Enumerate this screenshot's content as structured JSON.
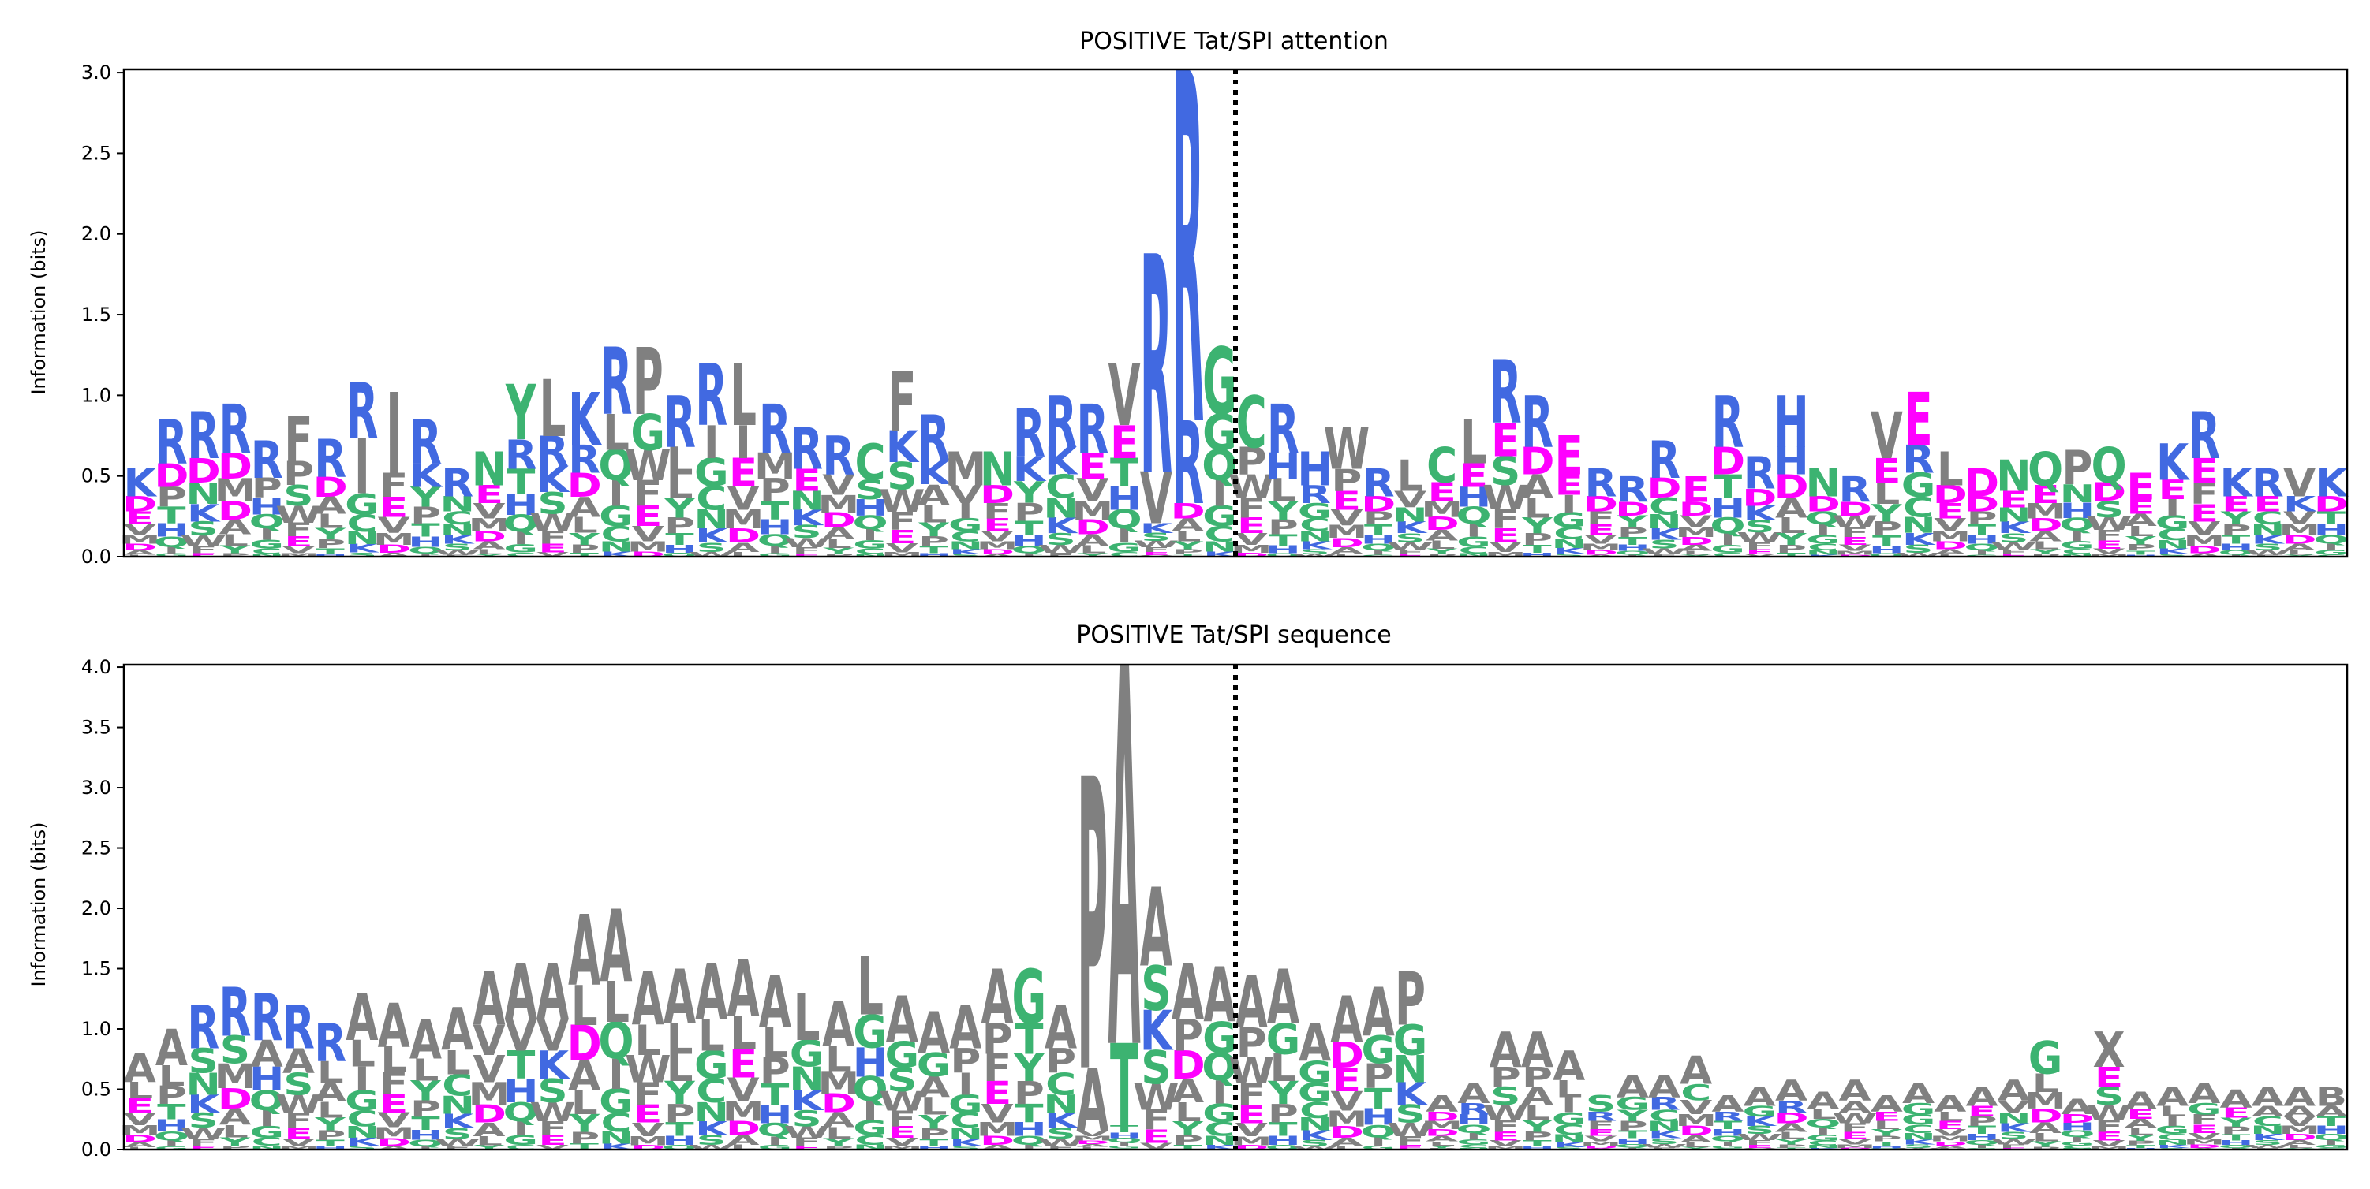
{
  "colors": {
    "R": "#4169e1",
    "K": "#4169e1",
    "H": "#4169e1",
    "D": "#ff00ff",
    "E": "#ff00ff",
    "G": "#3cb371",
    "S": "#3cb371",
    "T": "#3cb371",
    "N": "#3cb371",
    "Q": "#3cb371",
    "C": "#3cb371",
    "Y": "#3cb371",
    "A": "#808080",
    "V": "#808080",
    "L": "#808080",
    "I": "#808080",
    "P": "#808080",
    "F": "#808080",
    "M": "#808080",
    "W": "#808080",
    "X": "#808080"
  },
  "chart_data": [
    {
      "type": "logo",
      "title": "POSITIVE Tat/SPI attention",
      "ylabel": "Information (bits)",
      "ylim": [
        0,
        3.02
      ],
      "yticks": [
        "0.0",
        "0.5",
        "1.0",
        "1.5",
        "2.0",
        "2.5",
        "3.0"
      ],
      "positions": 70,
      "cleavage_site_after": 35,
      "top_letters": [
        "K",
        "R",
        "R",
        "R",
        "R",
        "F",
        "R",
        "R",
        "I",
        "R",
        "R",
        "N",
        "Y",
        "L",
        "K",
        "R",
        "P",
        "R",
        "R",
        "L",
        "R",
        "R",
        "R",
        "C",
        "F",
        "R",
        "M",
        "N",
        "R",
        "R",
        "R",
        "V",
        "R",
        "R",
        "G",
        "C",
        "R",
        "H",
        "W",
        "R",
        "L",
        "C",
        "L",
        "R",
        "R",
        "E",
        "R",
        "R",
        "R",
        "E",
        "R",
        "R",
        "H",
        "N",
        "R",
        "V",
        "E",
        "L",
        "D",
        "N",
        "Q",
        "P",
        "Q",
        "E",
        "K",
        "R",
        "K",
        "R",
        "V",
        "K"
      ],
      "column_heights": [
        0.55,
        0.85,
        0.9,
        0.95,
        0.72,
        0.87,
        0.73,
        1.08,
        1.02,
        0.85,
        0.55,
        0.65,
        1.07,
        1.1,
        1.02,
        1.3,
        1.3,
        1.0,
        1.2,
        1.2,
        0.95,
        0.8,
        0.75,
        0.7,
        1.15,
        0.88,
        0.65,
        0.65,
        0.92,
        1.0,
        0.95,
        1.2,
        1.88,
        3.02,
        1.3,
        1.0,
        0.95,
        0.65,
        0.8,
        0.55,
        0.6,
        0.68,
        0.85,
        1.22,
        1.0,
        0.75,
        0.55,
        0.5,
        0.72,
        0.5,
        1.0,
        0.62,
        1.0,
        0.55,
        0.5,
        0.9,
        1.02,
        0.65,
        0.55,
        0.6,
        0.65,
        0.66,
        0.68,
        0.52,
        0.7,
        0.9,
        0.55,
        0.55,
        0.55,
        0.55
      ],
      "second_letters": [
        "D",
        "D",
        "D",
        "D",
        "P",
        "P",
        "D",
        "I",
        "I",
        "K",
        "N",
        "E",
        "R",
        "R",
        "R",
        "L",
        "G",
        "L",
        "I",
        "I",
        "M",
        "E",
        "V",
        "S",
        "K",
        "K",
        "V",
        "D",
        "K",
        "K",
        "E",
        "E",
        "V",
        "R",
        "G",
        "P",
        "H",
        "R",
        "P",
        "D",
        "V",
        "E",
        "E",
        "E",
        "D",
        "E",
        "D",
        "D",
        "D",
        "D",
        "D",
        "D",
        "H",
        "D",
        "D",
        "E",
        "R",
        "D",
        "D",
        "E",
        "E",
        "N",
        "D",
        "E",
        "E",
        "E",
        "E",
        "E",
        "K",
        "D"
      ]
    },
    {
      "type": "logo",
      "title": "POSITIVE Tat/SPI sequence",
      "ylabel": "Information (bits)",
      "ylim": [
        0,
        4.02
      ],
      "yticks": [
        "0.0",
        "0.5",
        "1.0",
        "1.5",
        "2.0",
        "2.5",
        "3.0",
        "3.5",
        "4.0"
      ],
      "positions": 70,
      "cleavage_site_after": 35,
      "top_letters": [
        "A",
        "A",
        "R",
        "R",
        "R",
        "R",
        "R",
        "A",
        "A",
        "A",
        "A",
        "A",
        "A",
        "A",
        "A",
        "A",
        "A",
        "A",
        "A",
        "A",
        "A",
        "L",
        "A",
        "L",
        "A",
        "A",
        "A",
        "A",
        "G",
        "A",
        "P",
        "A",
        "A",
        "A",
        "A",
        "A",
        "A",
        "A",
        "A",
        "A",
        "P",
        "A",
        "A",
        "A",
        "A",
        "A",
        "S",
        "A",
        "A",
        "A",
        "A",
        "A",
        "A",
        "A",
        "A",
        "A",
        "A",
        "A",
        "A",
        "A",
        "G",
        "A",
        "X",
        "A",
        "A",
        "A",
        "A",
        "A",
        "A",
        "B"
      ],
      "column_heights": [
        0.8,
        1.0,
        1.2,
        1.35,
        1.3,
        1.2,
        1.05,
        1.3,
        1.22,
        1.08,
        1.18,
        1.48,
        1.55,
        1.55,
        1.95,
        2.0,
        1.48,
        1.5,
        1.55,
        1.58,
        1.45,
        1.3,
        1.23,
        1.6,
        1.28,
        1.15,
        1.2,
        1.5,
        1.5,
        1.2,
        3.1,
        4.02,
        2.18,
        1.55,
        1.52,
        1.45,
        1.5,
        1.05,
        1.28,
        1.35,
        1.48,
        0.45,
        0.55,
        0.98,
        0.98,
        0.82,
        0.45,
        0.62,
        0.62,
        0.78,
        0.45,
        0.52,
        0.58,
        0.48,
        0.58,
        0.45,
        0.55,
        0.45,
        0.52,
        0.58,
        0.9,
        0.42,
        0.98,
        0.48,
        0.52,
        0.55,
        0.5,
        0.52,
        0.52,
        0.52
      ],
      "second_letters": [
        "L",
        "L",
        "S",
        "S",
        "A",
        "A",
        "L",
        "L",
        "L",
        "L",
        "L",
        "V",
        "V",
        "V",
        "L",
        "L",
        "L",
        "L",
        "L",
        "L",
        "L",
        "G",
        "L",
        "G",
        "G",
        "G",
        "P",
        "P",
        "T",
        "P",
        "A",
        "T",
        "S",
        "P",
        "G",
        "P",
        "G",
        "G",
        "D",
        "G",
        "G",
        "D",
        "R",
        "P",
        "P",
        "L",
        "R",
        "G",
        "R",
        "C",
        "R",
        "G",
        "R",
        "L",
        "A",
        "E",
        "G",
        "L",
        "E",
        "V",
        "L",
        "D",
        "E",
        "E",
        "L",
        "G",
        "E",
        "A",
        "A",
        "A"
      ]
    }
  ]
}
